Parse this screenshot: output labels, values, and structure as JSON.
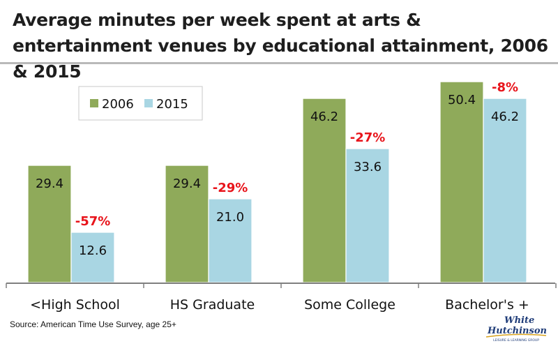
{
  "chart_data": {
    "type": "bar",
    "title": "Average minutes per week spent at arts & entertainment venues by educational attainment, 2006 & 2015",
    "categories": [
      "<High School",
      "HS Graduate",
      "Some College",
      "Bachelor's +"
    ],
    "series": [
      {
        "name": "2006",
        "values": [
          29.4,
          29.4,
          46.2,
          50.4
        ],
        "value_labels": [
          "29.4",
          "29.4",
          "46.2",
          "50.4"
        ],
        "color": "#8faa5a"
      },
      {
        "name": "2015",
        "values": [
          12.6,
          21.0,
          33.6,
          46.2
        ],
        "value_labels": [
          "12.6",
          "21.0",
          "33.6",
          "46.2"
        ],
        "color": "#a9d6e3"
      }
    ],
    "change_labels": [
      "-57%",
      "-29%",
      "-27%",
      "-8%"
    ],
    "change_color": "#e8141b",
    "ylim": [
      0,
      52
    ],
    "xlabel": "",
    "ylabel": "",
    "grid": false,
    "legend": "top-left"
  },
  "source": "Source: American Time Use Survey, age 25+",
  "logo": {
    "line1": "White",
    "line2": "Hutchinson",
    "tagline": "LEISURE & LEARNING GROUP"
  }
}
